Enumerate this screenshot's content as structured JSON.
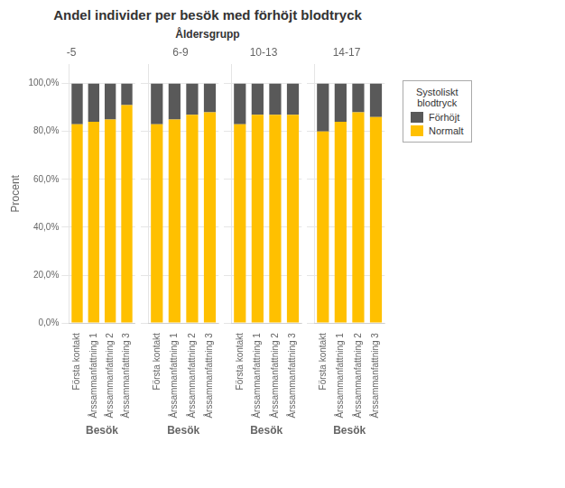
{
  "title": "Andel individer per besök med förhöjt blodtryck",
  "subtitle": "Åldersgrupp",
  "legend": "right",
  "legend_title": "Systoliskt\nblodtryck",
  "chart_data": [
    {
      "type": "bar",
      "stacked": true,
      "grid": true,
      "title": "-5",
      "xlabel": "Besök",
      "ylabel": "Procent",
      "categories": [
        "Första kontakt",
        "Årssammanfattning 1",
        "Årssammanfattning 2",
        "Årssammanfattning 3"
      ],
      "series": [
        {
          "name": "Normalt",
          "color": "#FFC000",
          "values": [
            83,
            84,
            85,
            91
          ]
        },
        {
          "name": "Förhöjt",
          "color": "#595959",
          "values": [
            17,
            16,
            15,
            9
          ]
        }
      ],
      "ylim": [
        0,
        108
      ],
      "yticks": [
        {
          "value": 0,
          "label": "0,0%"
        },
        {
          "value": 20,
          "label": "20,0%"
        },
        {
          "value": 40,
          "label": "40,0%"
        },
        {
          "value": 60,
          "label": "60,0%"
        },
        {
          "value": 80,
          "label": "80,0%"
        },
        {
          "value": 100,
          "label": "100,0%"
        }
      ]
    },
    {
      "type": "bar",
      "stacked": true,
      "grid": true,
      "title": "6-9",
      "xlabel": "Besök",
      "tick_labels": "x",
      "categories": [
        "Första kontakt",
        "Årssammanfattning 1",
        "Årssammanfattning 2",
        "Årssammanfattning 3"
      ],
      "series": [
        {
          "name": "Normalt",
          "color": "#FFC000",
          "values": [
            83,
            85,
            87,
            88
          ]
        },
        {
          "name": "Förhöjt",
          "color": "#595959",
          "values": [
            17,
            15,
            13,
            12
          ]
        }
      ],
      "ylim": [
        0,
        108
      ],
      "yticks": [
        0,
        20,
        40,
        60,
        80,
        100
      ]
    },
    {
      "type": "bar",
      "stacked": true,
      "grid": true,
      "title": "10-13",
      "xlabel": "Besök",
      "tick_labels": "x",
      "categories": [
        "Första kontakt",
        "Årssammanfattning 1",
        "Årssammanfattning 2",
        "Årssammanfattning 3"
      ],
      "series": [
        {
          "name": "Normalt",
          "color": "#FFC000",
          "values": [
            83,
            87,
            87,
            87
          ]
        },
        {
          "name": "Förhöjt",
          "color": "#595959",
          "values": [
            17,
            13,
            13,
            13
          ]
        }
      ],
      "ylim": [
        0,
        108
      ],
      "yticks": [
        0,
        20,
        40,
        60,
        80,
        100
      ]
    },
    {
      "type": "bar",
      "stacked": true,
      "grid": true,
      "title": "14-17",
      "xlabel": "Besök",
      "tick_labels": "x",
      "categories": [
        "Första kontakt",
        "Årssammanfattning 1",
        "Årssammanfattning 2",
        "Årssammanfattning 3"
      ],
      "series": [
        {
          "name": "Normalt",
          "color": "#FFC000",
          "values": [
            80,
            84,
            88,
            86
          ]
        },
        {
          "name": "Förhöjt",
          "color": "#595959",
          "values": [
            20,
            16,
            12,
            14
          ]
        }
      ],
      "ylim": [
        0,
        108
      ],
      "yticks": [
        0,
        20,
        40,
        60,
        80,
        100
      ]
    }
  ]
}
